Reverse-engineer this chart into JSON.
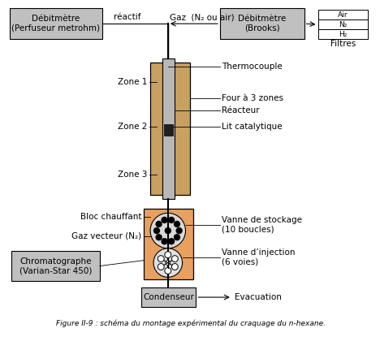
{
  "title": "Figure II-9 : schéma du montage expérimental du craquage du n-hexane.",
  "bg_color": "#ffffff",
  "box_color": "#c0c0c0",
  "oven_color": "#c8a060",
  "reactor_color": "#b8b8b8",
  "heater_color": "#e8a060",
  "filter_labels": [
    "Air",
    "N₂",
    "H₂"
  ],
  "box_labels": {
    "debit_left": "Débitmètre\n(Perfuseur metrohm)",
    "debit_right": "Débitmètre\n(Brooks)",
    "chromatographe": "Chromatographe\n(Varian-Star 450)",
    "condenseur": "Condenseur"
  },
  "zone_labels": [
    "Zone 1",
    "Zone 2",
    "Zone 3"
  ],
  "right_labels": {
    "thermocouple": "Thermocouple",
    "four": "Four à 3 zones",
    "reacteur": "Réacteur",
    "lit": "Lit catalytique",
    "vanne_stockage": "Vanne de stockage\n(10 boucles)",
    "vanne_injection": "Vanne d’injection\n(6 voies)"
  },
  "left_labels": {
    "bloc_chauffant": "Bloc chauffant",
    "gaz_vecteur": "Gaz vecteur (N₂)"
  },
  "top_label": "Gaz  (N₂ ou air)",
  "reactif_label": "réactif",
  "filtres_label": "Filtres",
  "evacuation_label": "Evacuation",
  "fontsize": 7.5
}
